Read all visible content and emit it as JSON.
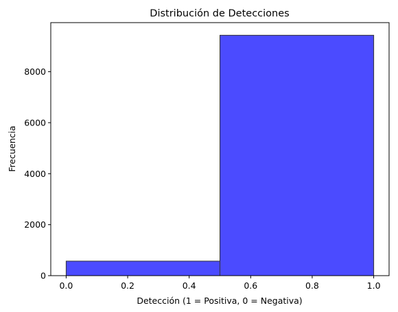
{
  "chart_data": {
    "type": "bar",
    "title": "Distribución de Detecciones",
    "xlabel": "Detección (1 = Positiva, 0 = Negativa)",
    "ylabel": "Frecuencia",
    "xlim": [
      -0.05,
      1.05
    ],
    "ylim": [
      0,
      9925
    ],
    "xticks": [
      "0.0",
      "0.2",
      "0.4",
      "0.6",
      "0.8",
      "1.0"
    ],
    "yticks": [
      "0",
      "2000",
      "4000",
      "6000",
      "8000"
    ],
    "bins": [
      {
        "x0": 0.0,
        "x1": 0.5,
        "value": 570
      },
      {
        "x0": 0.5,
        "x1": 1.0,
        "value": 9430
      }
    ],
    "bar_color": "#4b4bff",
    "edge_color": "#333333",
    "grid": false,
    "legend": "none"
  }
}
